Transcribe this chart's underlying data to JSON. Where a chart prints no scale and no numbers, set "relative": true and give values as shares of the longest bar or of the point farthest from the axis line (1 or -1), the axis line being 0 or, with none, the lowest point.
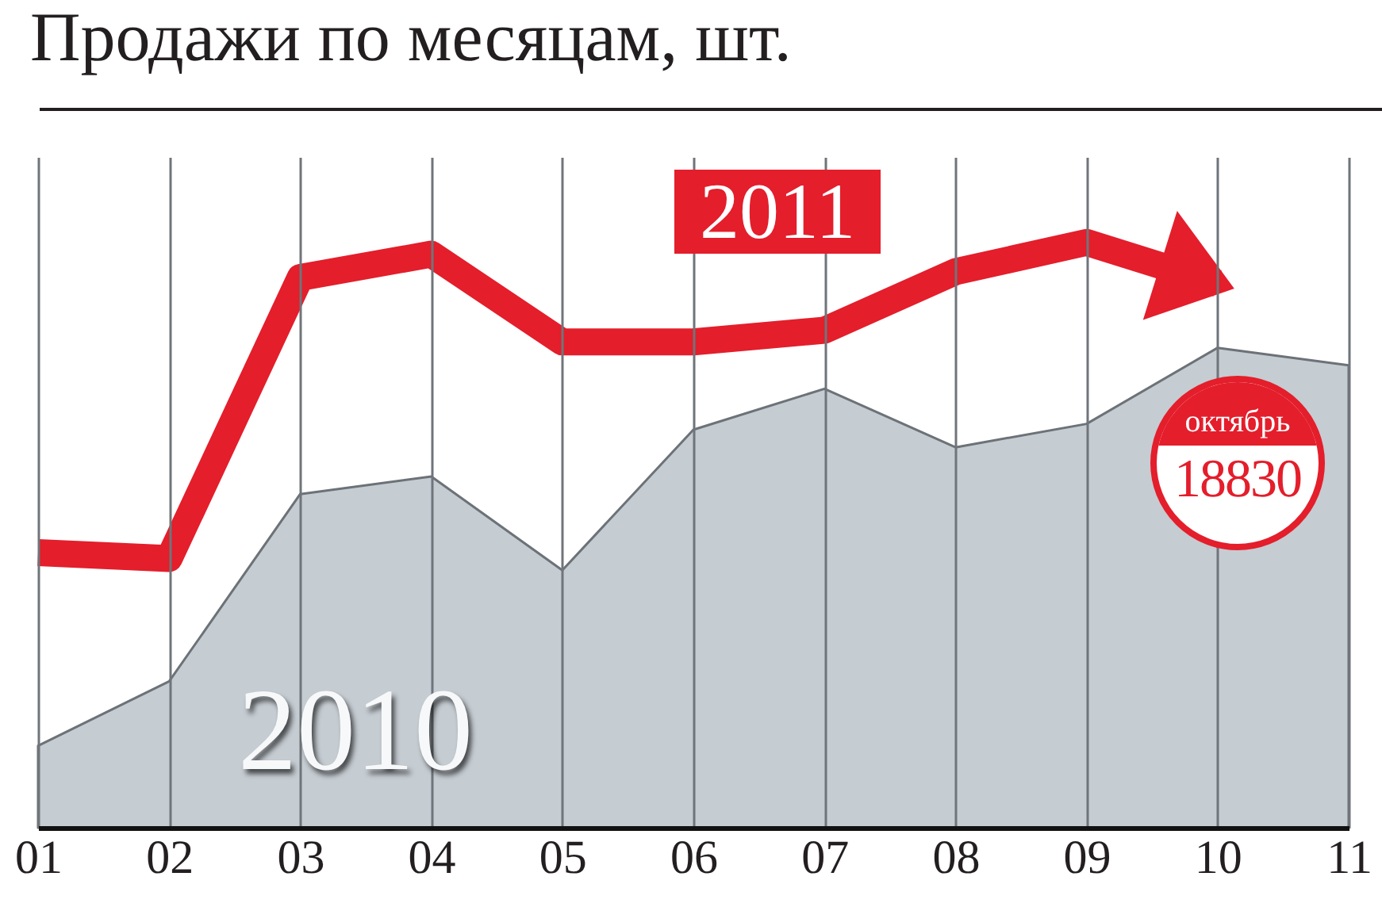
{
  "chart_data": {
    "type": "line",
    "title": "Продажи по месяцам, шт.",
    "categories": [
      "01",
      "02",
      "03",
      "04",
      "05",
      "06",
      "07",
      "08",
      "09",
      "10",
      "11"
    ],
    "relative": true,
    "series": [
      {
        "name": "2010",
        "type": "area",
        "color": "#c5ccd2",
        "values": [
          0.14,
          0.25,
          0.57,
          0.6,
          0.44,
          0.68,
          0.75,
          0.65,
          0.69,
          0.82,
          0.79
        ]
      },
      {
        "name": "2011",
        "color": "#e41e2b",
        "values": [
          0.47,
          0.46,
          0.94,
          0.98,
          0.83,
          0.83,
          0.85,
          0.95,
          1,
          0.93,
          null
        ]
      }
    ],
    "annotations": [
      "октябрь",
      "18830"
    ],
    "grid": "x",
    "legend": false
  }
}
